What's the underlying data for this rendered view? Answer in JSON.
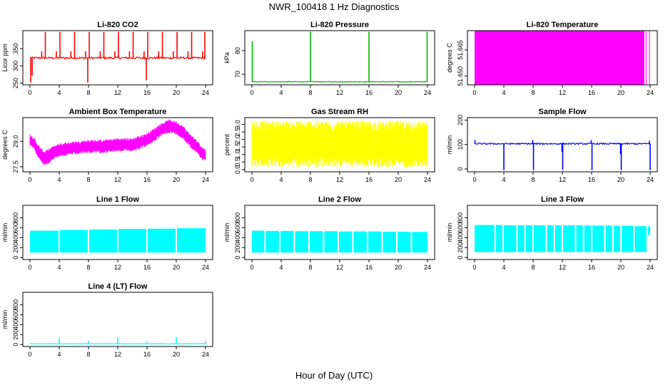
{
  "figure": {
    "title": "NWR_100418  1 Hz Diagnostics",
    "xlabel": "Hour of Day (UTC)"
  },
  "chart_data": [
    {
      "type": "line",
      "title": "Li-820 CO2",
      "ylabel": "Licor ppm",
      "color": "#ff0000",
      "x_ticks": [
        0,
        4,
        8,
        12,
        16,
        20,
        24
      ],
      "xlim": [
        0,
        24
      ],
      "y_ticks": [
        250,
        300,
        350
      ],
      "ylim": [
        245,
        402
      ],
      "series": [
        {
          "style": "baseline-with-spikes",
          "baseline": 323,
          "noise": 3,
          "spikes": [
            {
              "x": 0.1,
              "y": 252
            },
            {
              "x": 0.3,
              "y": 272
            },
            {
              "x": 1.6,
              "y": 342
            },
            {
              "x": 2.1,
              "y": 398
            },
            {
              "x": 3.6,
              "y": 342
            },
            {
              "x": 4.1,
              "y": 398
            },
            {
              "x": 5.6,
              "y": 342
            },
            {
              "x": 6.1,
              "y": 398
            },
            {
              "x": 7.6,
              "y": 342
            },
            {
              "x": 7.9,
              "y": 252
            },
            {
              "x": 8.1,
              "y": 398
            },
            {
              "x": 9.6,
              "y": 342
            },
            {
              "x": 10.1,
              "y": 398
            },
            {
              "x": 11.6,
              "y": 342
            },
            {
              "x": 12.1,
              "y": 398
            },
            {
              "x": 13.6,
              "y": 342
            },
            {
              "x": 14.1,
              "y": 398
            },
            {
              "x": 15.6,
              "y": 342
            },
            {
              "x": 15.9,
              "y": 258
            },
            {
              "x": 16.1,
              "y": 398
            },
            {
              "x": 17.6,
              "y": 342
            },
            {
              "x": 18.1,
              "y": 398
            },
            {
              "x": 19.6,
              "y": 342
            },
            {
              "x": 20.1,
              "y": 398
            },
            {
              "x": 21.6,
              "y": 342
            },
            {
              "x": 22.1,
              "y": 398
            },
            {
              "x": 23.6,
              "y": 342
            },
            {
              "x": 23.9,
              "y": 398
            }
          ]
        }
      ]
    },
    {
      "type": "line",
      "title": "Li-820 Pressure",
      "ylabel": "kPa",
      "color": "#00b400",
      "x_ticks": [
        0,
        4,
        8,
        12,
        16,
        20,
        24
      ],
      "xlim": [
        0,
        24
      ],
      "y_ticks": [
        70,
        80
      ],
      "ylim": [
        65.5,
        88.5
      ],
      "series": [
        {
          "style": "baseline-with-spikes",
          "baseline": 66.8,
          "noise": 0.15,
          "spikes": [
            {
              "x": 0.05,
              "y": 84
            },
            {
              "x": 8.0,
              "y": 88
            },
            {
              "x": 16.0,
              "y": 88
            },
            {
              "x": 23.95,
              "y": 88
            }
          ]
        }
      ]
    },
    {
      "type": "area",
      "title": "Li-820 Temperature",
      "ylabel": "degrees C",
      "color": "#ff00ff",
      "x_ticks": [
        0,
        4,
        8,
        12,
        16,
        20,
        24
      ],
      "xlim": [
        0,
        24
      ],
      "y_ticks": [
        51.65,
        51.665
      ],
      "y_tick_labels": [
        "51.650",
        "51.665"
      ],
      "ylim": [
        51.645,
        51.676
      ],
      "series": [
        {
          "style": "filled-band",
          "bands": [
            {
              "x0": 0,
              "x1": 23.2,
              "ymin": 51.645,
              "ymax": 51.676
            },
            {
              "x0": 23.4,
              "x1": 23.5,
              "ymin": 51.645,
              "ymax": 51.676
            },
            {
              "x0": 23.85,
              "x1": 23.95,
              "ymin": 51.645,
              "ymax": 51.676
            }
          ]
        }
      ]
    },
    {
      "type": "line",
      "title": "Ambient Box Temperature",
      "ylabel": "degrees C",
      "color": "#ff00ff",
      "x_ticks": [
        0,
        4,
        8,
        12,
        16,
        20,
        24
      ],
      "xlim": [
        0,
        24
      ],
      "y_ticks": [
        27.5,
        29.0
      ],
      "y_tick_labels": [
        "27.5",
        "29.0"
      ],
      "ylim": [
        27.2,
        30.4
      ],
      "series": [
        {
          "style": "noisy-band",
          "x": [
            0,
            0.5,
            1,
            1.5,
            2,
            2.5,
            3,
            4,
            6,
            8,
            10,
            12,
            14,
            16,
            17,
            18,
            19,
            20,
            21,
            22,
            23,
            23.5,
            24
          ],
          "center": [
            29.1,
            28.9,
            28.5,
            28.2,
            28.0,
            28.1,
            28.3,
            28.5,
            28.6,
            28.7,
            28.7,
            28.8,
            28.8,
            29.1,
            29.4,
            29.7,
            29.9,
            29.8,
            29.5,
            29.0,
            28.6,
            28.3,
            28.2
          ],
          "halfwidth": [
            0.35,
            0.35,
            0.4,
            0.4,
            0.45,
            0.45,
            0.4,
            0.4,
            0.4,
            0.4,
            0.4,
            0.4,
            0.4,
            0.4,
            0.4,
            0.4,
            0.4,
            0.4,
            0.4,
            0.4,
            0.4,
            0.4,
            0.35
          ]
        }
      ]
    },
    {
      "type": "line",
      "title": "Gas Stream RH",
      "ylabel": "percent",
      "color": "#ffff00",
      "x_ticks": [
        0,
        4,
        8,
        12,
        16,
        20,
        24
      ],
      "xlim": [
        0,
        24
      ],
      "y_ticks": [
        0.0,
        0.5,
        1.0,
        1.5,
        2.0,
        2.5,
        3.0
      ],
      "y_tick_labels": [
        "0.0",
        "0.5",
        "1.0",
        "1.5",
        "2.0",
        "2.5",
        "3.0"
      ],
      "ylim": [
        -0.15,
        3.45
      ],
      "series": [
        {
          "style": "noisy-band",
          "x": [
            0,
            24
          ],
          "center": [
            1.7,
            1.7
          ],
          "halfwidth": [
            1.55,
            1.55
          ]
        }
      ]
    },
    {
      "type": "line",
      "title": "Sample Flow",
      "ylabel": "ml/min",
      "color": "#0000ff",
      "x_ticks": [
        0,
        4,
        8,
        12,
        16,
        20,
        24
      ],
      "xlim": [
        0,
        24
      ],
      "y_ticks": [
        0,
        100,
        200
      ],
      "ylim": [
        -12,
        210
      ],
      "series": [
        {
          "style": "baseline-with-spikes",
          "baseline": 103,
          "noise": 3,
          "spikes": [
            {
              "x": 0.05,
              "y": 118
            },
            {
              "x": 4.0,
              "y": -5
            },
            {
              "x": 7.95,
              "y": 118
            },
            {
              "x": 8.05,
              "y": -5
            },
            {
              "x": 11.95,
              "y": 70
            },
            {
              "x": 12.05,
              "y": -5
            },
            {
              "x": 15.95,
              "y": 118
            },
            {
              "x": 16.05,
              "y": -5
            },
            {
              "x": 19.95,
              "y": 60
            },
            {
              "x": 20.05,
              "y": -5
            },
            {
              "x": 23.9,
              "y": 115
            },
            {
              "x": 24.0,
              "y": -5
            }
          ]
        }
      ]
    },
    {
      "type": "area",
      "title": "Line 1 Flow",
      "ylabel": "ml/min",
      "color": "#00ffff",
      "x_ticks": [
        0,
        4,
        8,
        12,
        16,
        20,
        24
      ],
      "xlim": [
        0,
        24
      ],
      "y_ticks": [
        0,
        200,
        400,
        600,
        800
      ],
      "ylim": [
        -40,
        1050
      ],
      "series": [
        {
          "style": "segmented-band",
          "segments": [
            {
              "x0": 0.0,
              "x1": 3.9,
              "ymin": 100,
              "ymax": 540
            },
            {
              "x0": 4.1,
              "x1": 7.9,
              "ymin": 100,
              "ymax": 555
            },
            {
              "x0": 8.1,
              "x1": 11.9,
              "ymin": 100,
              "ymax": 565
            },
            {
              "x0": 12.1,
              "x1": 15.9,
              "ymin": 100,
              "ymax": 575
            },
            {
              "x0": 16.1,
              "x1": 19.9,
              "ymin": 100,
              "ymax": 580
            },
            {
              "x0": 20.1,
              "x1": 24.0,
              "ymin": 100,
              "ymax": 590
            }
          ]
        }
      ]
    },
    {
      "type": "area",
      "title": "Line 2 Flow",
      "ylabel": "ml/min",
      "color": "#00ffff",
      "x_ticks": [
        0,
        4,
        8,
        12,
        16,
        20,
        24
      ],
      "xlim": [
        0,
        24
      ],
      "y_ticks": [
        0,
        200,
        400,
        600,
        800
      ],
      "ylim": [
        -40,
        1050
      ],
      "series": [
        {
          "style": "segmented-band",
          "segments": [
            {
              "x0": 0.0,
              "x1": 1.7,
              "ymin": 100,
              "ymax": 540
            },
            {
              "x0": 1.9,
              "x1": 3.7,
              "ymin": 100,
              "ymax": 535
            },
            {
              "x0": 3.9,
              "x1": 5.7,
              "ymin": 100,
              "ymax": 535
            },
            {
              "x0": 5.9,
              "x1": 7.7,
              "ymin": 100,
              "ymax": 530
            },
            {
              "x0": 7.9,
              "x1": 9.7,
              "ymin": 100,
              "ymax": 530
            },
            {
              "x0": 9.9,
              "x1": 11.7,
              "ymin": 100,
              "ymax": 530
            },
            {
              "x0": 11.9,
              "x1": 13.7,
              "ymin": 100,
              "ymax": 525
            },
            {
              "x0": 13.9,
              "x1": 15.7,
              "ymin": 100,
              "ymax": 525
            },
            {
              "x0": 15.9,
              "x1": 17.7,
              "ymin": 100,
              "ymax": 525
            },
            {
              "x0": 17.9,
              "x1": 19.7,
              "ymin": 100,
              "ymax": 520
            },
            {
              "x0": 19.9,
              "x1": 21.7,
              "ymin": 100,
              "ymax": 520
            },
            {
              "x0": 21.9,
              "x1": 24.0,
              "ymin": 100,
              "ymax": 515
            }
          ]
        }
      ]
    },
    {
      "type": "area",
      "title": "Line 3 Flow",
      "ylabel": "ml/min",
      "color": "#00ffff",
      "x_ticks": [
        0,
        4,
        8,
        12,
        16,
        20,
        24
      ],
      "xlim": [
        0,
        24
      ],
      "y_ticks": [
        0,
        200,
        400,
        600,
        800
      ],
      "ylim": [
        -40,
        1050
      ],
      "series": [
        {
          "style": "segmented-band",
          "segments": [
            {
              "x0": 0.0,
              "x1": 2.7,
              "ymin": 110,
              "ymax": 655
            },
            {
              "x0": 2.9,
              "x1": 3.8,
              "ymin": 110,
              "ymax": 655
            },
            {
              "x0": 4.0,
              "x1": 5.7,
              "ymin": 110,
              "ymax": 650
            },
            {
              "x0": 5.9,
              "x1": 6.8,
              "ymin": 110,
              "ymax": 650
            },
            {
              "x0": 7.0,
              "x1": 7.9,
              "ymin": 110,
              "ymax": 650
            },
            {
              "x0": 8.1,
              "x1": 9.7,
              "ymin": 110,
              "ymax": 650
            },
            {
              "x0": 9.9,
              "x1": 10.8,
              "ymin": 110,
              "ymax": 650
            },
            {
              "x0": 11.0,
              "x1": 11.9,
              "ymin": 110,
              "ymax": 648
            },
            {
              "x0": 12.1,
              "x1": 13.7,
              "ymin": 110,
              "ymax": 648
            },
            {
              "x0": 13.9,
              "x1": 14.8,
              "ymin": 110,
              "ymax": 648
            },
            {
              "x0": 15.0,
              "x1": 15.9,
              "ymin": 110,
              "ymax": 645
            },
            {
              "x0": 16.1,
              "x1": 17.7,
              "ymin": 110,
              "ymax": 645
            },
            {
              "x0": 17.9,
              "x1": 18.8,
              "ymin": 110,
              "ymax": 645
            },
            {
              "x0": 19.0,
              "x1": 19.9,
              "ymin": 110,
              "ymax": 640
            },
            {
              "x0": 20.1,
              "x1": 21.7,
              "ymin": 110,
              "ymax": 640
            },
            {
              "x0": 21.9,
              "x1": 23.5,
              "ymin": 110,
              "ymax": 630
            },
            {
              "x0": 23.7,
              "x1": 24.0,
              "ymin": 450,
              "ymax": 630
            }
          ]
        }
      ]
    },
    {
      "type": "line",
      "title": "Line 4 (LT) Flow",
      "ylabel": "ml/min",
      "color": "#00ffff",
      "x_ticks": [
        0,
        4,
        8,
        12,
        16,
        20,
        24
      ],
      "xlim": [
        0,
        24
      ],
      "y_ticks": [
        0,
        200,
        400,
        600,
        800
      ],
      "ylim": [
        -40,
        1050
      ],
      "series": [
        {
          "style": "baseline-with-spikes",
          "baseline": 15,
          "noise": 4,
          "spikes": [
            {
              "x": 4.0,
              "y": 140
            },
            {
              "x": 8.0,
              "y": 75
            },
            {
              "x": 12.0,
              "y": 140
            },
            {
              "x": 16.0,
              "y": 65
            },
            {
              "x": 20.0,
              "y": 150
            },
            {
              "x": 24.0,
              "y": 75
            }
          ]
        }
      ]
    }
  ]
}
